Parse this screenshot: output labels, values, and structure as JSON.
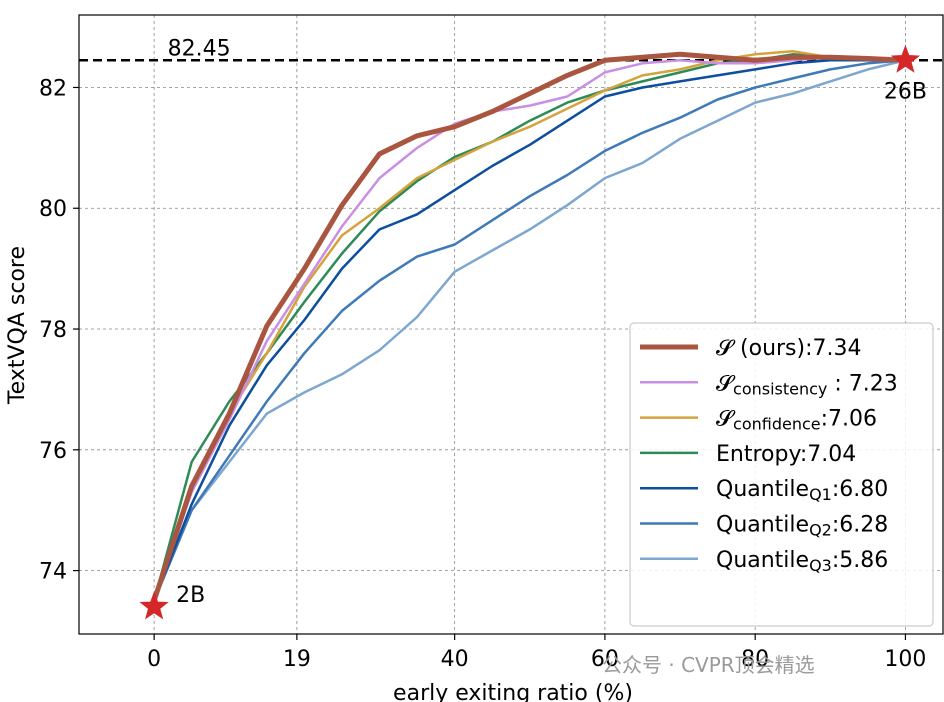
{
  "chart_data": {
    "type": "line",
    "title": "",
    "xlabel": "early exiting ratio (%)",
    "ylabel": "TextVQA score",
    "xlim": [
      -10,
      105
    ],
    "ylim": [
      72.95,
      83.2
    ],
    "xticks": [
      0,
      19,
      40,
      60,
      80,
      100
    ],
    "yticks": [
      74,
      76,
      78,
      80,
      82
    ],
    "grid": true,
    "legend_position": "bottom-right",
    "reference_line": {
      "y": 82.45,
      "label": "82.45",
      "style": "dashed"
    },
    "markers": [
      {
        "x": 0,
        "y": 73.4,
        "label": "2B",
        "shape": "star",
        "color": "#d62728"
      },
      {
        "x": 100,
        "y": 82.45,
        "label": "26B",
        "shape": "star",
        "color": "#d62728"
      }
    ],
    "series": [
      {
        "name": "S (ours):7.34",
        "legend_main": "𝓢",
        "legend_sub": "",
        "legend_rest": " (ours):7.34",
        "color": "#a9553f",
        "width": 5,
        "x": [
          0,
          5,
          10,
          15,
          20,
          25,
          30,
          35,
          40,
          45,
          50,
          55,
          60,
          65,
          70,
          75,
          80,
          85,
          90,
          95,
          100
        ],
        "y": [
          73.5,
          75.4,
          76.6,
          78.05,
          79.0,
          80.05,
          80.9,
          81.2,
          81.35,
          81.6,
          81.9,
          82.2,
          82.45,
          82.5,
          82.55,
          82.5,
          82.45,
          82.5,
          82.5,
          82.48,
          82.45
        ]
      },
      {
        "name": "S_consistency : 7.23",
        "legend_main": "𝓢",
        "legend_sub": "consistency",
        "legend_rest": " : 7.23",
        "color": "#c98fe3",
        "width": 2.5,
        "x": [
          0,
          5,
          10,
          15,
          20,
          25,
          30,
          35,
          40,
          45,
          50,
          55,
          60,
          65,
          70,
          75,
          80,
          85,
          90,
          95,
          100
        ],
        "y": [
          73.5,
          75.3,
          76.5,
          77.8,
          78.75,
          79.7,
          80.5,
          81.0,
          81.4,
          81.6,
          81.7,
          81.85,
          82.25,
          82.4,
          82.45,
          82.4,
          82.4,
          82.45,
          82.5,
          82.48,
          82.45
        ]
      },
      {
        "name": "S_confidence:7.06",
        "legend_main": "𝓢",
        "legend_sub": "confidence",
        "legend_rest": ":7.06",
        "color": "#d4a33c",
        "width": 2.5,
        "x": [
          0,
          5,
          10,
          15,
          20,
          25,
          30,
          35,
          40,
          45,
          50,
          55,
          60,
          65,
          70,
          75,
          80,
          85,
          90,
          95,
          100
        ],
        "y": [
          73.5,
          75.4,
          76.6,
          77.6,
          78.7,
          79.55,
          80.0,
          80.5,
          80.8,
          81.1,
          81.35,
          81.65,
          81.95,
          82.2,
          82.3,
          82.45,
          82.55,
          82.6,
          82.5,
          82.48,
          82.45
        ]
      },
      {
        "name": "Entropy:7.04",
        "legend_main": "Entropy:7.04",
        "legend_sub": "",
        "legend_rest": "",
        "color": "#2e8b57",
        "width": 2.5,
        "x": [
          0,
          5,
          10,
          15,
          20,
          25,
          30,
          35,
          40,
          45,
          50,
          55,
          60,
          65,
          70,
          75,
          80,
          85,
          90,
          95,
          100
        ],
        "y": [
          73.5,
          75.8,
          76.8,
          77.6,
          78.45,
          79.25,
          79.95,
          80.45,
          80.85,
          81.1,
          81.45,
          81.75,
          81.95,
          82.1,
          82.25,
          82.4,
          82.45,
          82.55,
          82.5,
          82.48,
          82.45
        ]
      },
      {
        "name": "Quantile_Q1:6.80",
        "legend_main": "Quantile",
        "legend_sub": "Q1",
        "legend_rest": ":6.80",
        "color": "#0d4f9e",
        "width": 2.5,
        "x": [
          0,
          5,
          10,
          15,
          20,
          25,
          30,
          35,
          40,
          45,
          50,
          55,
          60,
          65,
          70,
          75,
          80,
          85,
          90,
          95,
          100
        ],
        "y": [
          73.5,
          75.1,
          76.4,
          77.4,
          78.15,
          79.0,
          79.65,
          79.9,
          80.3,
          80.7,
          81.05,
          81.45,
          81.85,
          82.0,
          82.1,
          82.2,
          82.3,
          82.4,
          82.45,
          82.45,
          82.45
        ]
      },
      {
        "name": "Quantile_Q2:6.28",
        "legend_main": "Quantile",
        "legend_sub": "Q2",
        "legend_rest": ":6.28",
        "color": "#3f79b8",
        "width": 2.5,
        "x": [
          0,
          5,
          10,
          15,
          20,
          25,
          30,
          35,
          40,
          45,
          50,
          55,
          60,
          65,
          70,
          75,
          80,
          85,
          90,
          95,
          100
        ],
        "y": [
          73.5,
          75.0,
          75.9,
          76.8,
          77.6,
          78.3,
          78.8,
          79.2,
          79.4,
          79.8,
          80.2,
          80.55,
          80.95,
          81.25,
          81.5,
          81.8,
          82.0,
          82.15,
          82.3,
          82.4,
          82.45
        ]
      },
      {
        "name": "Quantile_Q3:5.86",
        "legend_main": "Quantile",
        "legend_sub": "Q3",
        "legend_rest": ":5.86",
        "color": "#7ea7cf",
        "width": 2.5,
        "x": [
          0,
          5,
          10,
          15,
          20,
          25,
          30,
          35,
          40,
          45,
          50,
          55,
          60,
          65,
          70,
          75,
          80,
          85,
          90,
          95,
          100
        ],
        "y": [
          73.5,
          75.0,
          75.8,
          76.6,
          76.95,
          77.25,
          77.65,
          78.2,
          78.95,
          79.3,
          79.65,
          80.05,
          80.5,
          80.75,
          81.15,
          81.45,
          81.75,
          81.9,
          82.1,
          82.3,
          82.45
        ]
      }
    ]
  },
  "watermark": "公众号 · CVPR顶会精选"
}
